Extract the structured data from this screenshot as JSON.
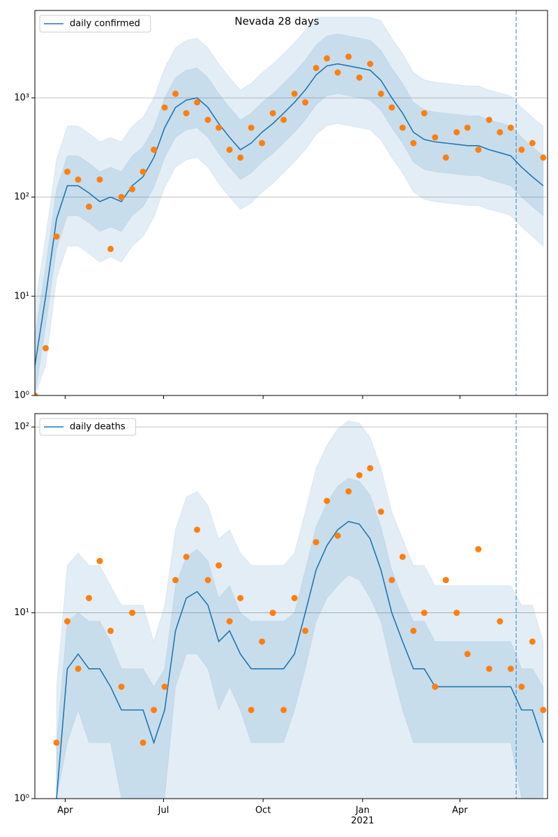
{
  "chart_data": [
    {
      "type": "line",
      "title": "Nevada 28 days",
      "yscale": "log",
      "grid": true,
      "legend": "upper left",
      "x": [
        0,
        10,
        20,
        30,
        40,
        50,
        60,
        70,
        80,
        90,
        100,
        110,
        120,
        130,
        140,
        150,
        160,
        170,
        180,
        190,
        200,
        210,
        220,
        230,
        240,
        250,
        260,
        270,
        280,
        290,
        300,
        310,
        320,
        330,
        340,
        350,
        360,
        370,
        380,
        390,
        400,
        410,
        420,
        430,
        440,
        450,
        460,
        470
      ],
      "xlim": [
        0,
        474
      ],
      "xticks": [
        {
          "value": 28,
          "label": "Apr"
        },
        {
          "value": 119,
          "label": "Jul"
        },
        {
          "value": 211,
          "label": "Oct"
        },
        {
          "value": 303,
          "label": "Jan",
          "year": "2021"
        },
        {
          "value": 393,
          "label": "Apr"
        }
      ],
      "vline": 445,
      "ylim": [
        1,
        7600
      ],
      "yticks": [
        {
          "value": 1,
          "label": "10⁰"
        },
        {
          "value": 10,
          "label": "10¹"
        },
        {
          "value": 100,
          "label": "10²"
        },
        {
          "value": 1000,
          "label": "10³"
        }
      ],
      "series": [
        {
          "name": "daily confirmed",
          "color": "#1f77b4",
          "values": [
            2,
            10,
            60,
            130,
            130,
            110,
            90,
            100,
            90,
            130,
            160,
            250,
            500,
            800,
            950,
            1000,
            800,
            550,
            400,
            300,
            350,
            450,
            550,
            700,
            900,
            1200,
            1700,
            2100,
            2200,
            2100,
            2000,
            1900,
            1500,
            1000,
            700,
            450,
            380,
            360,
            350,
            340,
            330,
            330,
            300,
            280,
            260,
            200,
            160,
            130
          ]
        }
      ],
      "scatter": {
        "color": "#ff7f0e",
        "values": [
          1,
          3,
          40,
          180,
          150,
          80,
          150,
          30,
          100,
          120,
          180,
          300,
          800,
          1100,
          700,
          900,
          600,
          500,
          300,
          250,
          500,
          350,
          700,
          600,
          1100,
          900,
          2000,
          2500,
          1800,
          2600,
          1600,
          2200,
          1100,
          800,
          500,
          350,
          700,
          400,
          250,
          450,
          500,
          300,
          600,
          450,
          500,
          300,
          350,
          250
        ]
      },
      "bands": [
        {
          "color": "#1f77b4",
          "lower": [
            1,
            2,
            15,
            32,
            32,
            27,
            22,
            25,
            22,
            32,
            40,
            62,
            125,
            200,
            237,
            250,
            200,
            137,
            100,
            75,
            87,
            112,
            137,
            175,
            225,
            300,
            425,
            525,
            550,
            525,
            500,
            475,
            375,
            250,
            175,
            112,
            95,
            90,
            87,
            85,
            82,
            82,
            75,
            70,
            65,
            50,
            40,
            32
          ],
          "upper": [
            8,
            40,
            240,
            520,
            520,
            440,
            360,
            400,
            360,
            520,
            640,
            1000,
            2000,
            3200,
            3800,
            4000,
            3200,
            2200,
            1600,
            1200,
            1400,
            1800,
            2200,
            2800,
            3600,
            4800,
            6500,
            6500,
            6500,
            6500,
            6500,
            6500,
            6000,
            4000,
            2800,
            1800,
            1520,
            1440,
            1400,
            1360,
            1320,
            1320,
            1200,
            1120,
            1040,
            800,
            640,
            520
          ]
        },
        {
          "color": "#1f77b4",
          "lower": [
            1,
            5,
            30,
            65,
            65,
            55,
            45,
            50,
            45,
            65,
            80,
            125,
            250,
            400,
            475,
            500,
            400,
            275,
            200,
            150,
            175,
            225,
            275,
            350,
            450,
            600,
            850,
            1050,
            1100,
            1050,
            1000,
            950,
            750,
            500,
            350,
            225,
            190,
            180,
            175,
            170,
            165,
            165,
            150,
            140,
            130,
            100,
            80,
            65
          ],
          "upper": [
            4,
            20,
            120,
            260,
            260,
            220,
            180,
            200,
            180,
            260,
            320,
            500,
            1000,
            1600,
            1900,
            2000,
            1600,
            1100,
            800,
            600,
            700,
            900,
            1100,
            1400,
            1800,
            2400,
            3400,
            4200,
            4400,
            4200,
            4000,
            3800,
            3000,
            2000,
            1400,
            900,
            760,
            720,
            700,
            680,
            660,
            660,
            600,
            560,
            520,
            400,
            320,
            260
          ]
        }
      ]
    },
    {
      "type": "line",
      "yscale": "log",
      "grid": true,
      "legend": "upper left",
      "x": [
        0,
        10,
        20,
        30,
        40,
        50,
        60,
        70,
        80,
        90,
        100,
        110,
        120,
        130,
        140,
        150,
        160,
        170,
        180,
        190,
        200,
        210,
        220,
        230,
        240,
        250,
        260,
        270,
        280,
        290,
        300,
        310,
        320,
        330,
        340,
        350,
        360,
        370,
        380,
        390,
        400,
        410,
        420,
        430,
        440,
        450,
        460,
        470
      ],
      "xlim": [
        0,
        474
      ],
      "xticks": [
        {
          "value": 28,
          "label": "Apr"
        },
        {
          "value": 119,
          "label": "Jul"
        },
        {
          "value": 211,
          "label": "Oct"
        },
        {
          "value": 303,
          "label": "Jan",
          "year": "2021"
        },
        {
          "value": 393,
          "label": "Apr"
        }
      ],
      "vline": 445,
      "ylim": [
        1,
        118
      ],
      "yticks": [
        {
          "value": 1,
          "label": "10⁰"
        },
        {
          "value": 10,
          "label": "10¹"
        },
        {
          "value": 100,
          "label": "10²"
        }
      ],
      "series": [
        {
          "name": "daily deaths",
          "color": "#1f77b4",
          "values": [
            null,
            null,
            1,
            5,
            6,
            5,
            5,
            4,
            3,
            3,
            3,
            2,
            3,
            8,
            12,
            13,
            11,
            7,
            8,
            6,
            5,
            5,
            5,
            5,
            6,
            10,
            17,
            23,
            28,
            31,
            30,
            25,
            17,
            10,
            7,
            5,
            5,
            4,
            4,
            4,
            4,
            4,
            4,
            4,
            4,
            3,
            3,
            2
          ]
        }
      ],
      "scatter": {
        "color": "#ff7f0e",
        "values": [
          null,
          null,
          2,
          9,
          5,
          12,
          19,
          8,
          4,
          10,
          2,
          3,
          4,
          15,
          20,
          28,
          15,
          18,
          9,
          12,
          3,
          7,
          10,
          3,
          12,
          8,
          24,
          40,
          26,
          45,
          55,
          60,
          35,
          15,
          20,
          8,
          10,
          4,
          15,
          10,
          6,
          22,
          5,
          9,
          5,
          4,
          7,
          3
        ]
      },
      "bands": [
        {
          "color": "#1f77b4",
          "lower": [
            null,
            null,
            1,
            1,
            1,
            1,
            1,
            1,
            1,
            1,
            1,
            1,
            1,
            1,
            1,
            1,
            1,
            1,
            1,
            1,
            1,
            1,
            1,
            1,
            1,
            1,
            1,
            1,
            1,
            1,
            1,
            1,
            1,
            1,
            1,
            1,
            1,
            1,
            1,
            1,
            1,
            1,
            1,
            1,
            1,
            1,
            1,
            1
          ],
          "upper": [
            null,
            null,
            4,
            18,
            21,
            18,
            18,
            14,
            11,
            11,
            11,
            7,
            11,
            28,
            42,
            45,
            38,
            25,
            28,
            21,
            18,
            18,
            18,
            18,
            21,
            35,
            60,
            80,
            98,
            108,
            105,
            88,
            60,
            35,
            25,
            18,
            18,
            14,
            14,
            14,
            14,
            14,
            14,
            14,
            14,
            11,
            11,
            7
          ]
        },
        {
          "color": "#1f77b4",
          "lower": [
            null,
            null,
            1,
            2,
            3,
            2,
            2,
            2,
            1,
            1,
            1,
            1,
            1,
            4,
            6,
            6,
            5,
            3,
            4,
            3,
            2,
            2,
            2,
            2,
            3,
            5,
            9,
            12,
            14,
            16,
            15,
            12,
            9,
            5,
            3,
            2,
            2,
            2,
            2,
            2,
            2,
            2,
            2,
            2,
            2,
            1,
            1,
            1
          ],
          "upper": [
            null,
            null,
            2,
            9,
            10,
            9,
            9,
            7,
            5,
            5,
            5,
            4,
            5,
            14,
            20,
            22,
            19,
            12,
            14,
            10,
            9,
            9,
            9,
            9,
            10,
            17,
            29,
            39,
            48,
            53,
            51,
            43,
            29,
            17,
            12,
            9,
            9,
            7,
            7,
            7,
            7,
            7,
            7,
            7,
            7,
            5,
            5,
            4
          ]
        }
      ]
    }
  ]
}
